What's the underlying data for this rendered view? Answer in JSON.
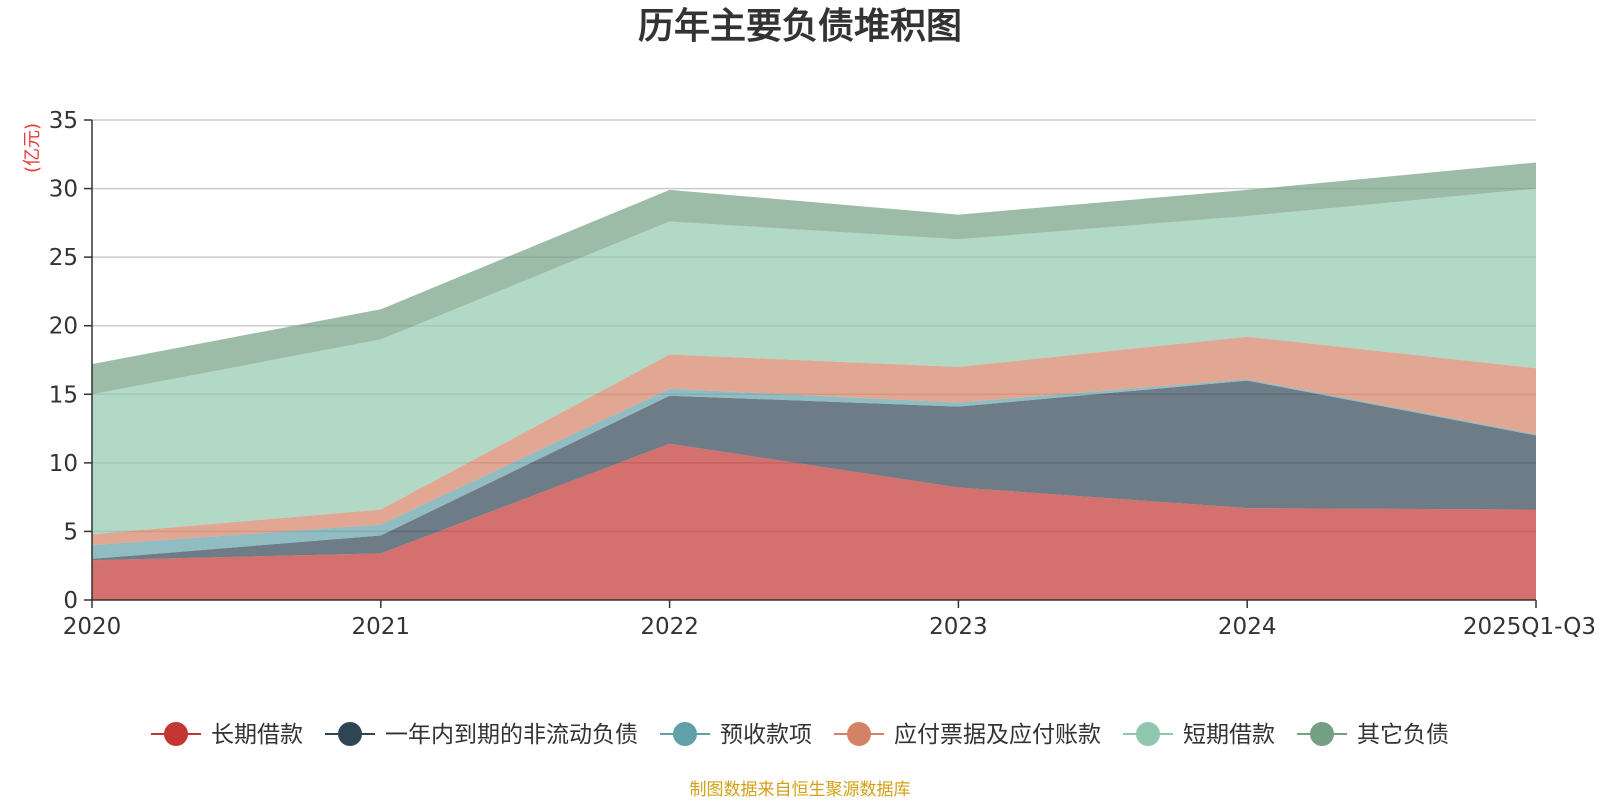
{
  "chart_data": {
    "type": "area",
    "stacked": true,
    "title": "历年主要负债堆积图",
    "ylabel": "(亿元)",
    "xlabel": "",
    "ylim": [
      0,
      35
    ],
    "yticks": [
      0,
      5,
      10,
      15,
      20,
      25,
      30,
      35
    ],
    "categories": [
      "2020",
      "2021",
      "2022",
      "2023",
      "2024",
      "2025Q1-Q3"
    ],
    "series": [
      {
        "name": "长期借款",
        "color": "#c23531",
        "values": [
          2.9,
          3.4,
          11.4,
          8.2,
          6.7,
          6.6
        ]
      },
      {
        "name": "一年内到期的非流动负债",
        "color": "#2f4554",
        "values": [
          0.1,
          1.3,
          3.5,
          5.9,
          9.3,
          5.4
        ]
      },
      {
        "name": "预收款项",
        "color": "#61a0a8",
        "values": [
          1.0,
          0.8,
          0.5,
          0.3,
          0.1,
          0.1
        ]
      },
      {
        "name": "应付票据及应付账款",
        "color": "#d48265",
        "values": [
          0.8,
          1.1,
          2.5,
          2.6,
          3.1,
          4.8
        ]
      },
      {
        "name": "短期借款",
        "color": "#91c7ae",
        "values": [
          10.2,
          12.4,
          9.7,
          9.3,
          8.8,
          13.1
        ]
      },
      {
        "name": "其它负债",
        "color": "#749f83",
        "values": [
          2.2,
          2.2,
          2.3,
          1.8,
          1.9,
          1.9
        ]
      }
    ],
    "grid": true,
    "legend_position": "bottom",
    "source": "制图数据来自恒生聚源数据库"
  }
}
